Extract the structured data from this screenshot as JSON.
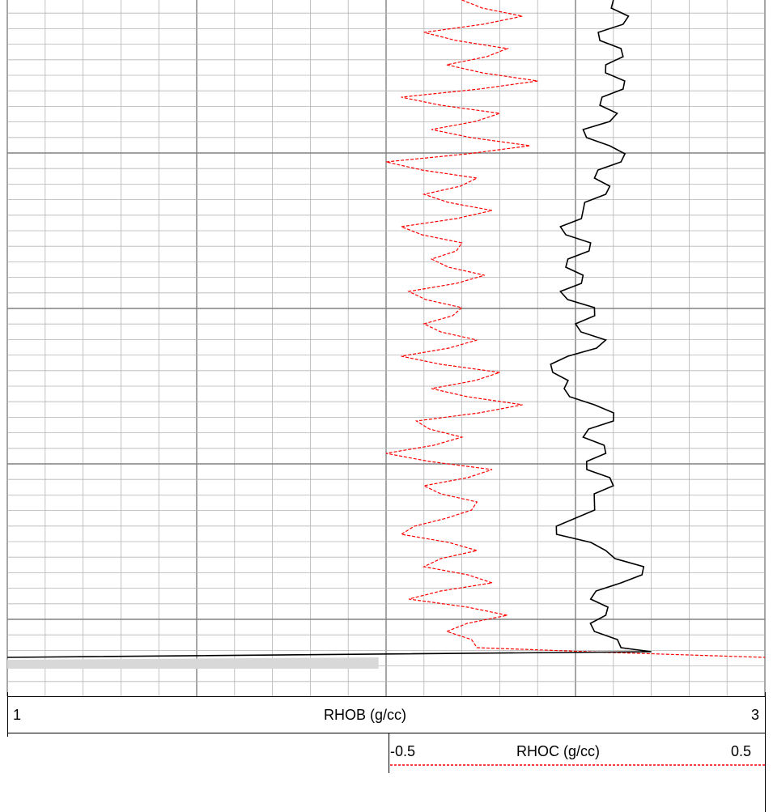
{
  "chart_data": {
    "type": "line",
    "chart_kind": "well-log track",
    "title": "",
    "grid": true,
    "series": [
      {
        "name": "RHOB",
        "unit": "g/cc",
        "scale_min": 1,
        "scale_max": 3,
        "color": "#000000",
        "line_style": "solid",
        "shading_below_tail": "#d8d8d8",
        "y": [
          0,
          20,
          40,
          60,
          80,
          100,
          120,
          140,
          160,
          180,
          200,
          220,
          240,
          260,
          280,
          300,
          320,
          340,
          360,
          380,
          400,
          420,
          440,
          460,
          480,
          500,
          520,
          540,
          560,
          580,
          600,
          620,
          640,
          660,
          680,
          700,
          720,
          740,
          760,
          780,
          800,
          805,
          812
        ],
        "values": [
          2.6,
          2.64,
          2.56,
          2.62,
          2.58,
          2.63,
          2.57,
          2.61,
          2.52,
          2.59,
          2.62,
          2.55,
          2.58,
          2.52,
          2.46,
          2.54,
          2.48,
          2.52,
          2.46,
          2.55,
          2.5,
          2.58,
          2.48,
          2.44,
          2.47,
          2.55,
          2.6,
          2.52,
          2.58,
          2.53,
          2.6,
          2.55,
          2.5,
          2.45,
          2.58,
          2.68,
          2.62,
          2.54,
          2.58,
          2.55,
          2.62,
          2.7,
          1.0
        ]
      },
      {
        "name": "RHOC",
        "unit": "g/cc",
        "scale_min": -0.5,
        "scale_max": 0.5,
        "color": "#ff0000",
        "line_style": "dashed",
        "y": [
          0,
          20,
          40,
          60,
          80,
          100,
          120,
          140,
          160,
          180,
          200,
          220,
          240,
          260,
          280,
          300,
          320,
          340,
          360,
          380,
          400,
          420,
          440,
          460,
          480,
          500,
          520,
          540,
          560,
          580,
          600,
          620,
          640,
          660,
          680,
          700,
          720,
          740,
          760,
          780,
          800,
          812
        ],
        "values": [
          0.1,
          0.18,
          0.05,
          0.16,
          0.08,
          0.2,
          0.02,
          0.15,
          0.06,
          0.19,
          0.0,
          0.12,
          0.05,
          0.14,
          0.02,
          0.1,
          0.06,
          0.13,
          0.03,
          0.1,
          0.05,
          0.12,
          0.02,
          0.15,
          0.06,
          0.18,
          0.04,
          0.1,
          0.0,
          0.14,
          0.05,
          0.12,
          0.08,
          0.02,
          0.12,
          0.05,
          0.14,
          0.03,
          0.16,
          0.08,
          0.12,
          0.5
        ]
      }
    ]
  },
  "scales": {
    "rhob": {
      "left": "1",
      "label": "RHOB (g/cc)",
      "right": "3"
    },
    "rhoc": {
      "left": "-0.5",
      "label": "RHOC (g/cc)",
      "right": "0.5"
    }
  }
}
